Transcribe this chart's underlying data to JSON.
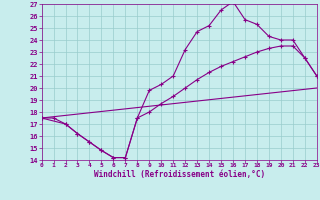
{
  "xlabel": "Windchill (Refroidissement éolien,°C)",
  "xlim": [
    0,
    23
  ],
  "ylim": [
    14,
    27
  ],
  "xticks": [
    0,
    1,
    2,
    3,
    4,
    5,
    6,
    7,
    8,
    9,
    10,
    11,
    12,
    13,
    14,
    15,
    16,
    17,
    18,
    19,
    20,
    21,
    22,
    23
  ],
  "yticks": [
    14,
    15,
    16,
    17,
    18,
    19,
    20,
    21,
    22,
    23,
    24,
    25,
    26,
    27
  ],
  "bg_color": "#c8eded",
  "line_color": "#880088",
  "grid_color": "#99cccc",
  "line1_x": [
    0,
    1,
    2,
    3,
    4,
    5,
    6,
    7,
    8,
    9,
    10,
    11,
    12,
    13,
    14,
    15,
    16,
    17,
    18,
    19,
    20,
    21,
    22,
    23
  ],
  "line1_y": [
    17.5,
    17.5,
    17.0,
    16.2,
    15.5,
    14.8,
    14.2,
    14.2,
    17.5,
    19.8,
    20.3,
    21.0,
    23.2,
    24.7,
    25.2,
    26.5,
    27.2,
    25.7,
    25.3,
    24.3,
    24.0,
    24.0,
    22.5,
    21.0
  ],
  "line2_x": [
    0,
    2,
    3,
    4,
    5,
    6,
    7,
    8,
    9,
    10,
    11,
    12,
    13,
    14,
    15,
    16,
    17,
    18,
    19,
    20,
    21,
    22,
    23
  ],
  "line2_y": [
    17.5,
    17.0,
    16.2,
    15.5,
    14.8,
    14.2,
    14.2,
    17.5,
    18.0,
    18.7,
    19.3,
    20.0,
    20.7,
    21.3,
    21.8,
    22.2,
    22.6,
    23.0,
    23.3,
    23.5,
    23.5,
    22.5,
    21.0
  ],
  "line3_x": [
    0,
    23
  ],
  "line3_y": [
    17.5,
    20.0
  ]
}
